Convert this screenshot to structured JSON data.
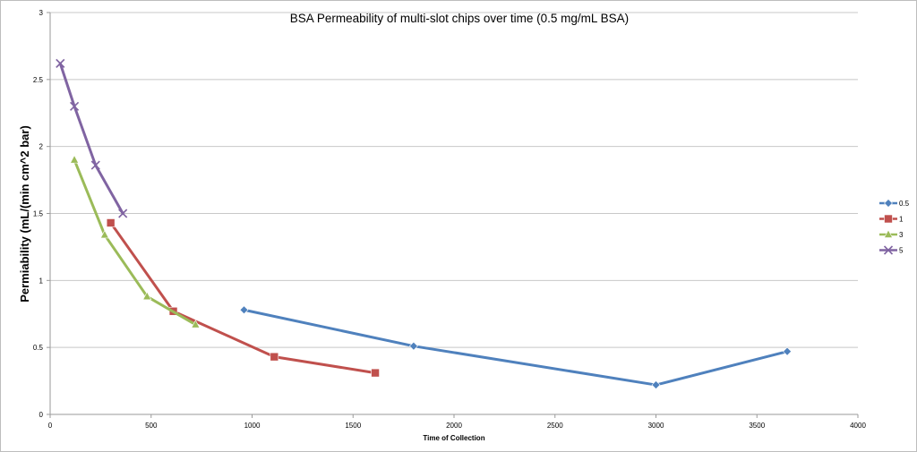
{
  "chart_data": {
    "type": "line",
    "title": "BSA Permeability of multi-slot chips over time (0.5 mg/mL BSA)",
    "xlabel": "Time of Collection",
    "ylabel": "Permiability (mL/(min cm^2 bar)",
    "xlim": [
      0,
      4000
    ],
    "ylim": [
      0,
      3
    ],
    "xticks": [
      0,
      500,
      1000,
      1500,
      2000,
      2500,
      3000,
      3500,
      4000
    ],
    "yticks": [
      0,
      0.5,
      1,
      1.5,
      2,
      2.5,
      3
    ],
    "grid": "horizontal",
    "legend_position": "right",
    "series": [
      {
        "name": "0.5",
        "color": "#4f81bd",
        "marker": "diamond",
        "x": [
          960,
          1800,
          3000,
          3650
        ],
        "y": [
          0.78,
          0.51,
          0.22,
          0.47
        ]
      },
      {
        "name": "1",
        "color": "#c0504d",
        "marker": "square",
        "x": [
          300,
          610,
          1110,
          1610
        ],
        "y": [
          1.43,
          0.77,
          0.43,
          0.31
        ]
      },
      {
        "name": "3",
        "color": "#9bbb59",
        "marker": "triangle",
        "x": [
          120,
          270,
          480,
          720
        ],
        "y": [
          1.9,
          1.34,
          0.88,
          0.67
        ]
      },
      {
        "name": "5",
        "color": "#8064a2",
        "marker": "x",
        "x": [
          50,
          120,
          225,
          360
        ],
        "y": [
          2.62,
          2.3,
          1.86,
          1.5
        ]
      }
    ]
  }
}
